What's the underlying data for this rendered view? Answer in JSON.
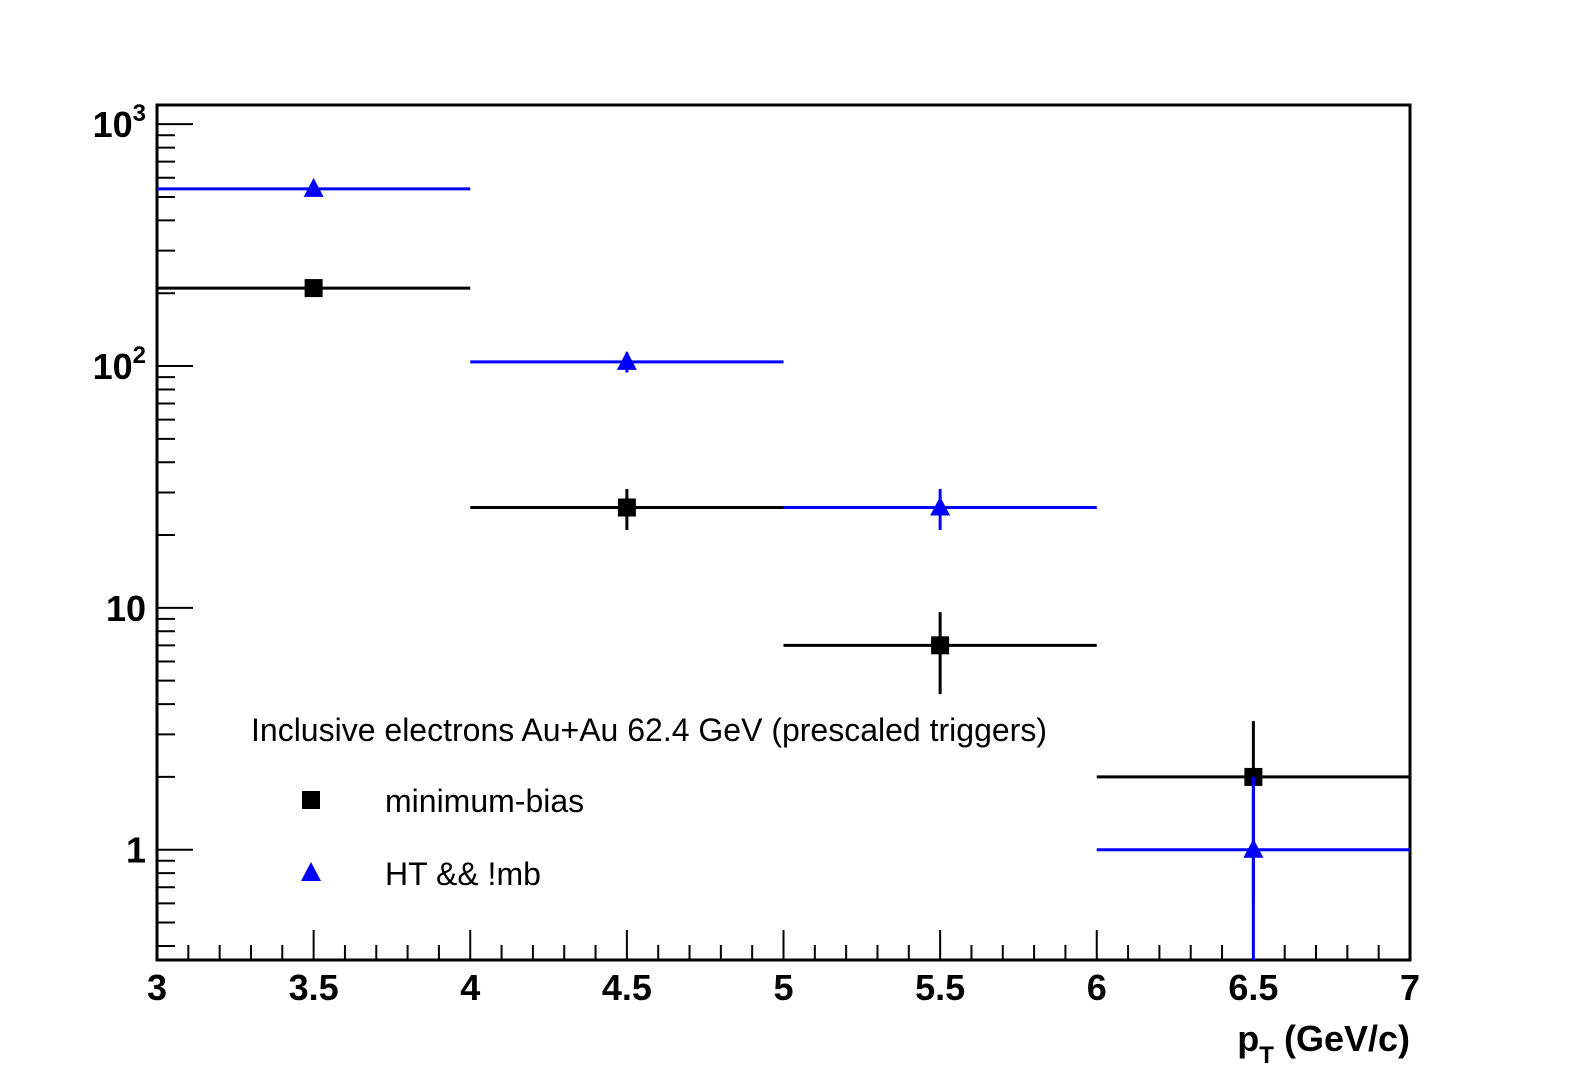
{
  "chart_data": {
    "type": "scatter",
    "title": "",
    "xlabel_main": "p",
    "xlabel_sub": "T",
    "xlabel_rest": " (GeV/c)",
    "ylabel": "",
    "xlim": [
      3,
      7
    ],
    "ylim": [
      0.35,
      1200
    ],
    "yscale": "log",
    "x_ticks": [
      "3",
      "3.5",
      "4",
      "4.5",
      "5",
      "5.5",
      "6",
      "6.5",
      "7"
    ],
    "y_tick_labels": [
      {
        "value": 1000,
        "base": "10",
        "exp": "3"
      },
      {
        "value": 100,
        "base": "10",
        "exp": "2"
      },
      {
        "value": 10,
        "base": "10",
        "exp": ""
      },
      {
        "value": 1,
        "base": "1",
        "exp": ""
      }
    ],
    "legend": {
      "header": "Inclusive electrons Au+Au 62.4 GeV (prescaled triggers)",
      "placement": "bottom-left"
    },
    "series": [
      {
        "name": "minimum-bias",
        "marker": "square",
        "color": "#000000",
        "points": [
          {
            "x": 3.5,
            "y": 210,
            "xerr": 0.5,
            "ylo": 210,
            "yhi": 210
          },
          {
            "x": 4.5,
            "y": 26,
            "xerr": 0.5,
            "ylo": 21,
            "yhi": 31
          },
          {
            "x": 5.5,
            "y": 7,
            "xerr": 0.5,
            "ylo": 4.4,
            "yhi": 9.6
          },
          {
            "x": 6.5,
            "y": 2,
            "xerr": 0.5,
            "ylo": 0.6,
            "yhi": 3.4
          }
        ]
      },
      {
        "name": "HT && !mb",
        "marker": "triangle",
        "color": "#0000ff",
        "points": [
          {
            "x": 3.5,
            "y": 540,
            "xerr": 0.5,
            "ylo": 540,
            "yhi": 540
          },
          {
            "x": 4.5,
            "y": 104,
            "xerr": 0.5,
            "ylo": 94,
            "yhi": 114
          },
          {
            "x": 5.5,
            "y": 26,
            "xerr": 0.5,
            "ylo": 21,
            "yhi": 31
          },
          {
            "x": 6.5,
            "y": 1,
            "xerr": 0.5,
            "ylo": 0.35,
            "yhi": 2
          }
        ]
      }
    ]
  }
}
